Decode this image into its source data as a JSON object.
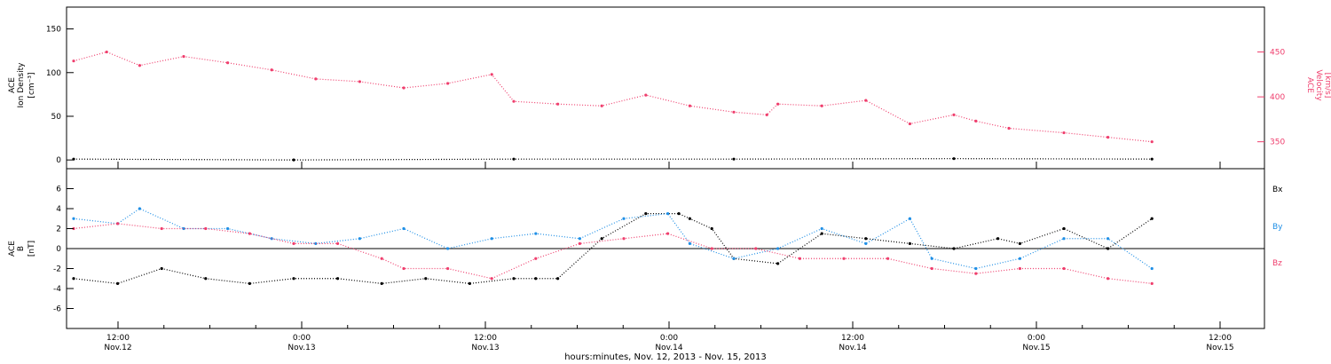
{
  "colors": {
    "black": "#000000",
    "blue": "#1f8fe6",
    "red": "#ef3e6d",
    "axis": "#000000"
  },
  "chart_data": [
    {
      "type": "scatter",
      "panel": "top",
      "ylabel": [
        "ACE",
        "Ion Density",
        "[cm⁻³]"
      ],
      "ylabel_right": [
        "ACE",
        "Velocity",
        "[km/s]"
      ],
      "ylim": [
        -10,
        175
      ],
      "yticks": [
        0,
        50,
        100,
        150
      ],
      "ylim_right": [
        320,
        500
      ],
      "yticks_right": [
        350,
        400,
        450
      ],
      "series": [
        {
          "color": "red",
          "axis": "right",
          "x": [
            0,
            3,
            6,
            10,
            14,
            18,
            22,
            26,
            30,
            34,
            38,
            40,
            44,
            48,
            52,
            56,
            60,
            63,
            64,
            68,
            72,
            76,
            80,
            82,
            85,
            90,
            94,
            98
          ],
          "y": [
            440,
            450,
            435,
            445,
            438,
            430,
            420,
            417,
            410,
            415,
            425,
            395,
            392,
            390,
            402,
            390,
            383,
            380,
            392,
            390,
            396,
            370,
            380,
            373,
            365,
            360,
            355,
            350
          ]
        },
        {
          "color": "black",
          "axis": "left",
          "x": [
            0,
            20,
            40,
            60,
            80,
            98
          ],
          "y": [
            1,
            0,
            1,
            1,
            1.5,
            1
          ]
        }
      ],
      "grid": false
    },
    {
      "type": "scatter",
      "panel": "bottom",
      "ylabel": [
        "ACE",
        "B",
        "[nT]"
      ],
      "ylim": [
        -8,
        8
      ],
      "yticks": [
        -6,
        -4,
        -2,
        0,
        2,
        4,
        6
      ],
      "legend": [
        "Bx",
        "By",
        "Bz"
      ],
      "series": [
        {
          "name": "Bx",
          "color": "black",
          "x": [
            0,
            4,
            8,
            12,
            16,
            20,
            24,
            28,
            32,
            36,
            40,
            42,
            44,
            48,
            52,
            55,
            56,
            58,
            60,
            64,
            68,
            72,
            76,
            80,
            84,
            86,
            90,
            94,
            98
          ],
          "y": [
            -3,
            -3.5,
            -2,
            -3,
            -3.5,
            -3,
            -3,
            -3.5,
            -3,
            -3.5,
            -3,
            -3,
            -3,
            1,
            3.5,
            3.5,
            3,
            2,
            -1,
            -1.5,
            1.5,
            1,
            0.5,
            0,
            1,
            0.5,
            2,
            0,
            3
          ]
        },
        {
          "name": "By",
          "color": "blue",
          "x": [
            0,
            4,
            6,
            10,
            14,
            18,
            22,
            26,
            30,
            34,
            38,
            42,
            46,
            50,
            54,
            56,
            60,
            64,
            68,
            72,
            76,
            78,
            82,
            86,
            90,
            94,
            98
          ],
          "y": [
            3,
            2.5,
            4,
            2,
            2,
            1,
            0.5,
            1,
            2,
            0,
            1,
            1.5,
            1,
            3,
            3.5,
            0.5,
            -1,
            0,
            2,
            0.5,
            3,
            -1,
            -2,
            -1,
            1,
            1,
            -2
          ]
        },
        {
          "name": "Bz",
          "color": "red",
          "x": [
            0,
            4,
            8,
            12,
            16,
            20,
            24,
            28,
            30,
            34,
            38,
            42,
            46,
            50,
            54,
            58,
            62,
            66,
            70,
            74,
            78,
            82,
            86,
            90,
            94,
            98
          ],
          "y": [
            2,
            2.5,
            2,
            2,
            1.5,
            0.5,
            0.5,
            -1,
            -2,
            -2,
            -3,
            -1,
            0.5,
            1,
            1.5,
            0,
            0,
            -1,
            -1,
            -1,
            -2,
            -2.5,
            -2,
            -2,
            -3,
            -3.5
          ]
        }
      ],
      "grid": false
    }
  ],
  "time_axis": {
    "labels": [
      {
        "time": "12:00",
        "date": "Nov.12"
      },
      {
        "time": "0:00",
        "date": "Nov.13"
      },
      {
        "time": "12:00",
        "date": "Nov.13"
      },
      {
        "time": "0:00",
        "date": "Nov.14"
      },
      {
        "time": "12:00",
        "date": "Nov.14"
      },
      {
        "time": "0:00",
        "date": "Nov.15"
      },
      {
        "time": "12:00",
        "date": "Nov.15"
      }
    ],
    "xlabel": "hours:minutes, Nov. 12, 2013 - Nov. 15, 2013"
  }
}
